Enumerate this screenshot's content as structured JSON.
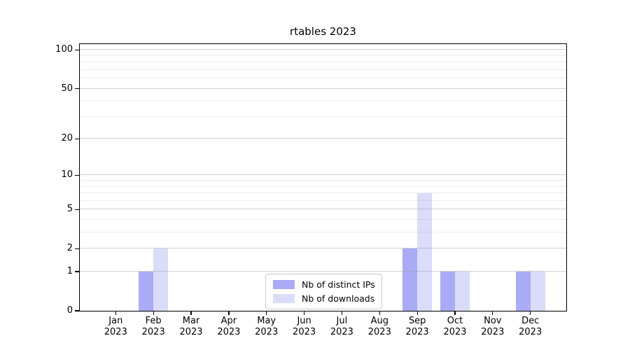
{
  "chart_data": {
    "type": "bar",
    "title": "rtables 2023",
    "categories": [
      "Jan",
      "Feb",
      "Mar",
      "Apr",
      "May",
      "Jun",
      "Jul",
      "Aug",
      "Sep",
      "Oct",
      "Nov",
      "Dec"
    ],
    "year_suffix": "2023",
    "series": [
      {
        "name": "Nb of distinct IPs",
        "color": "#aaabf7",
        "values": [
          0,
          1,
          0,
          0,
          0,
          0,
          0,
          0,
          2,
          1,
          0,
          1
        ]
      },
      {
        "name": "Nb of downloads",
        "color": "#dadcfa",
        "values": [
          0,
          2,
          0,
          0,
          0,
          0,
          0,
          0,
          7,
          1,
          0,
          1
        ]
      }
    ],
    "yscale": "log1p",
    "ylim": [
      0,
      111
    ],
    "yticks": [
      0,
      1,
      2,
      5,
      10,
      20,
      50,
      100
    ],
    "minor_gridlines": [
      3,
      4,
      6,
      7,
      8,
      9,
      30,
      40,
      60,
      70,
      80,
      90
    ],
    "grid": true,
    "legend_position": "lower center inside",
    "xlabel": "",
    "ylabel": ""
  },
  "colors": {
    "grid_major": "rgba(150,150,150,0.45)",
    "grid_minor": "rgba(170,170,170,0.22)",
    "axis": "#000000",
    "legend_border": "#c9c9c9",
    "legend_bg": "#ffffff",
    "text": "#000000"
  }
}
